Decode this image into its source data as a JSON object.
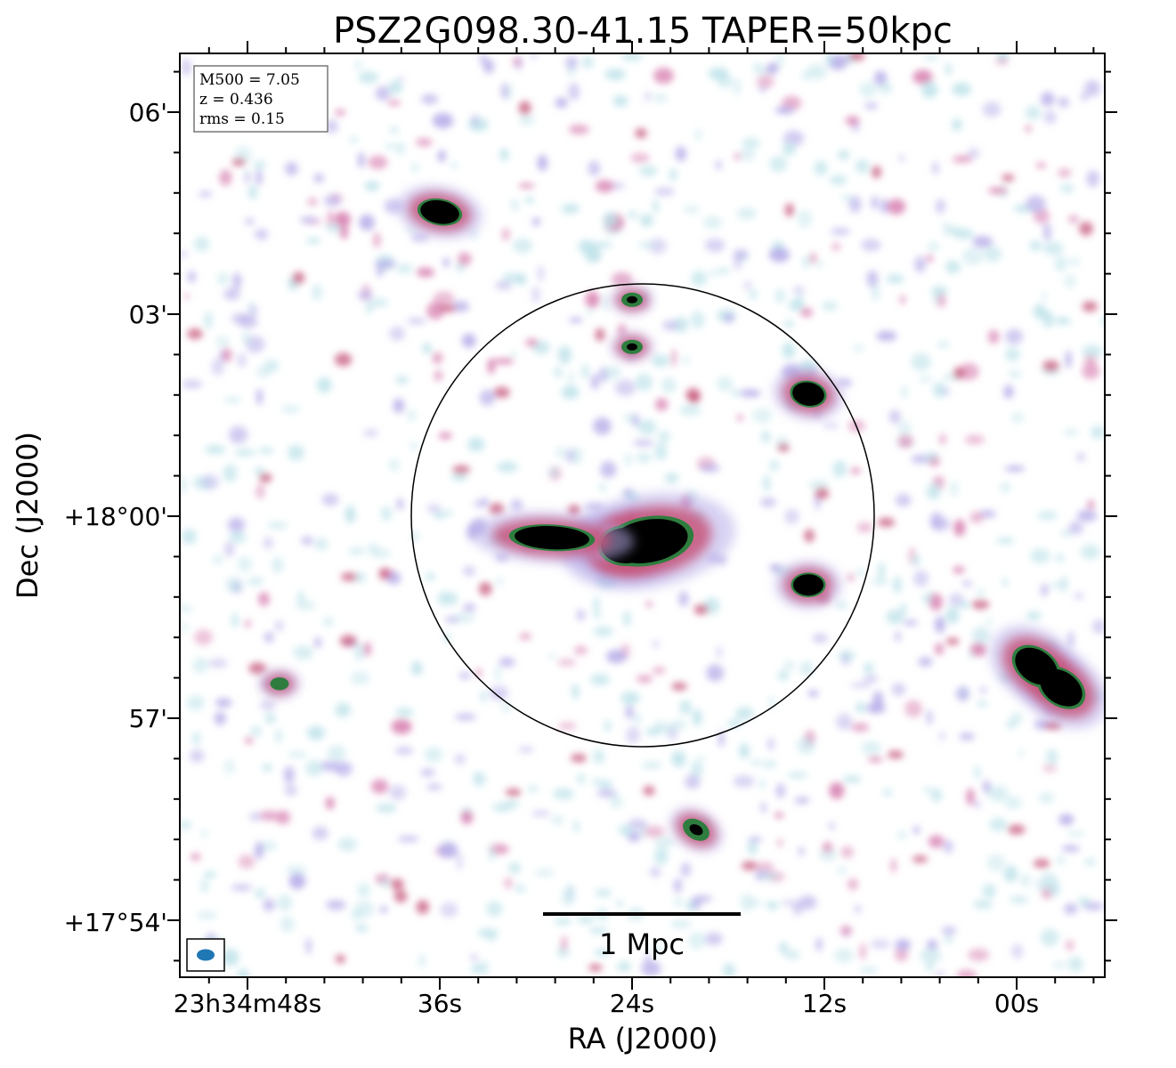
{
  "chart_data": {
    "type": "heatmap",
    "title": "PSZ2G098.30-41.15 TAPER=50kpc",
    "xlabel": "RA (J2000)",
    "ylabel": "Dec (J2000)",
    "x_ticks": [
      "23h34m48s",
      "36s",
      "24s",
      "12s",
      "00s"
    ],
    "y_ticks": [
      "06'",
      "03'",
      "+18°00'",
      "57'",
      "+17°54'"
    ],
    "info": {
      "m500": "M500 = 7.05",
      "z": "z = 0.436",
      "rms": "rms = 0.15"
    },
    "scalebar_label": "1 Mpc",
    "colormap": [
      "#ffffff",
      "#bfe3ea",
      "#b7aee9",
      "#d77fb0",
      "#c6557a",
      "#2e7d3f",
      "#000000"
    ],
    "sources": [
      {
        "name": "central-bright-source",
        "ra": "23h34m23s",
        "dec": "+17°59'37\"",
        "level": "saturated"
      },
      {
        "name": "west-tail-source",
        "ra": "23h34m29s",
        "dec": "+17°59'40\"",
        "level": "saturated"
      },
      {
        "name": "northeast-source",
        "ra": "23h34m36s",
        "dec": "+18°04'30\"",
        "level": "saturated"
      },
      {
        "name": "east-inner-source",
        "ra": "23h34m13s",
        "dec": "+18°01'48\"",
        "level": "saturated"
      },
      {
        "name": "east-lower-source",
        "ra": "23h34m13s",
        "dec": "+17°58'58\"",
        "level": "saturated"
      },
      {
        "name": "far-east-double-source",
        "ra": "23h33m58s",
        "dec": "+17°57'36\"",
        "level": "saturated"
      },
      {
        "name": "north-pair-upper",
        "ra": "23h34m24s",
        "dec": "+18°03'12\"",
        "level": "high"
      },
      {
        "name": "north-pair-lower",
        "ra": "23h34m24s",
        "dec": "+18°02'30\"",
        "level": "high"
      },
      {
        "name": "south-source",
        "ra": "23h34m20s",
        "dec": "+17°55'20\"",
        "level": "high"
      },
      {
        "name": "southwest-source",
        "ra": "23h34m46s",
        "dec": "+17°57'30\"",
        "level": "medium"
      }
    ]
  }
}
